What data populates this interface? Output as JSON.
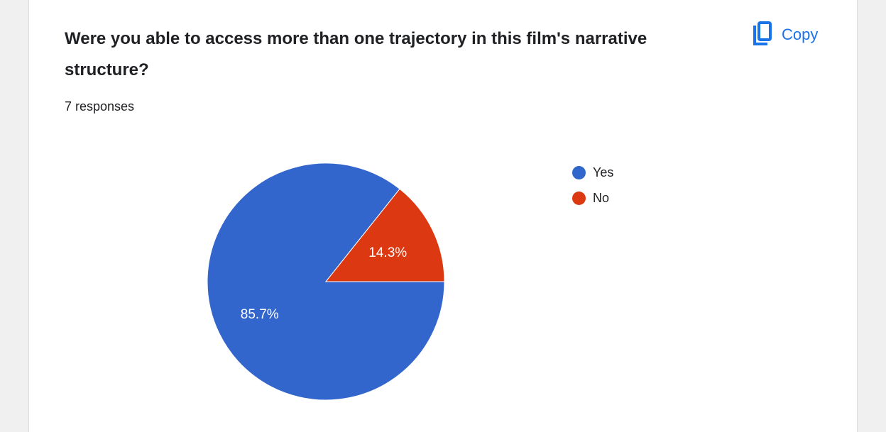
{
  "question": {
    "title": "Were you able to access more than one trajectory in this film's narrative structure?",
    "responses": "7 responses"
  },
  "copy_button": {
    "label": "Copy",
    "icon": "copy-icon",
    "color": "#1a73e8"
  },
  "chart_data": {
    "type": "pie",
    "categories": [
      "Yes",
      "No"
    ],
    "values": [
      85.7,
      14.3
    ],
    "labels": [
      "85.7%",
      "14.3%"
    ],
    "colors": [
      "#3366cc",
      "#dc3912"
    ],
    "legend_position": "right"
  }
}
